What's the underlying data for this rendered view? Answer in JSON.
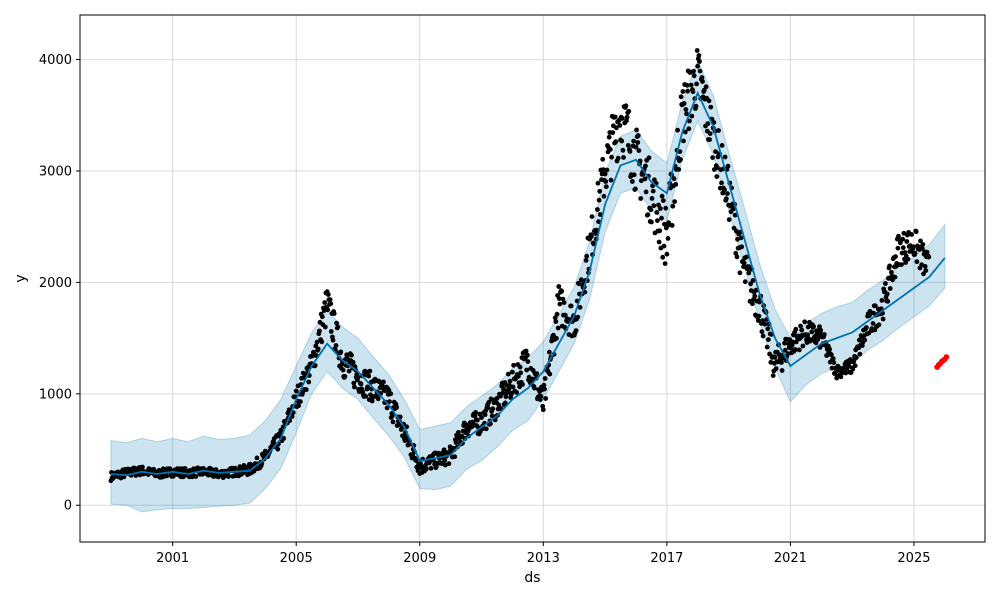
{
  "colors": {
    "observed": "#000000",
    "forecast_line": "#0072B2",
    "uncertainty_band": "#0072B2",
    "recent_points": "#ff0000",
    "grid": "#d9d9d9"
  },
  "chart_data": {
    "type": "line",
    "xlabel": "ds",
    "ylabel": "y",
    "xlim": [
      1998.0,
      2027.3
    ],
    "ylim": [
      -330,
      4400
    ],
    "grid": true,
    "x_ticks": [
      {
        "label": "2001",
        "value": 2001
      },
      {
        "label": "2005",
        "value": 2005
      },
      {
        "label": "2009",
        "value": 2009
      },
      {
        "label": "2013",
        "value": 2013
      },
      {
        "label": "2017",
        "value": 2017
      },
      {
        "label": "2021",
        "value": 2021
      },
      {
        "label": "2025",
        "value": 2025
      }
    ],
    "y_ticks": [
      {
        "label": "0",
        "value": 0
      },
      {
        "label": "1000",
        "value": 1000
      },
      {
        "label": "2000",
        "value": 2000
      },
      {
        "label": "3000",
        "value": 3000
      },
      {
        "label": "4000",
        "value": 4000
      }
    ],
    "series": [
      {
        "role": "forecast",
        "x": [
          1999.0,
          1999.5,
          2000.0,
          2000.5,
          2001.0,
          2001.5,
          2002.0,
          2002.5,
          2003.0,
          2003.5,
          2004.0,
          2004.5,
          2005.0,
          2005.5,
          2006.0,
          2006.5,
          2007.0,
          2007.5,
          2008.0,
          2008.5,
          2009.0,
          2009.5,
          2010.0,
          2010.5,
          2011.0,
          2011.5,
          2012.0,
          2012.5,
          2013.0,
          2013.5,
          2014.0,
          2014.5,
          2015.0,
          2015.5,
          2016.0,
          2016.5,
          2017.0,
          2017.5,
          2018.0,
          2018.5,
          2019.0,
          2019.5,
          2020.0,
          2020.5,
          2021.0,
          2021.5,
          2022.0,
          2022.5,
          2023.0,
          2023.5,
          2024.0,
          2024.5,
          2025.0,
          2025.5,
          2026.0
        ],
        "y": [
          280,
          270,
          300,
          280,
          300,
          280,
          310,
          290,
          300,
          310,
          420,
          600,
          950,
          1250,
          1450,
          1300,
          1200,
          1050,
          900,
          700,
          400,
          420,
          450,
          600,
          700,
          800,
          950,
          1050,
          1200,
          1450,
          1700,
          2100,
          2700,
          3050,
          3100,
          2900,
          2800,
          3350,
          3700,
          3400,
          2900,
          2400,
          1900,
          1500,
          1250,
          1350,
          1450,
          1500,
          1550,
          1650,
          1750,
          1850,
          1950,
          2050,
          2220
        ],
        "lower": [
          10,
          0,
          -60,
          -40,
          -30,
          -30,
          -20,
          -10,
          0,
          20,
          150,
          330,
          650,
          1000,
          1200,
          1050,
          950,
          780,
          620,
          430,
          150,
          140,
          170,
          320,
          400,
          520,
          670,
          760,
          950,
          1200,
          1450,
          1850,
          2450,
          2800,
          2850,
          2650,
          2550,
          3100,
          3450,
          3150,
          2650,
          2150,
          1650,
          1230,
          930,
          1080,
          1180,
          1240,
          1270,
          1390,
          1480,
          1590,
          1690,
          1790,
          1950
        ],
        "upper": [
          580,
          560,
          600,
          570,
          600,
          570,
          620,
          590,
          600,
          630,
          760,
          950,
          1250,
          1550,
          1750,
          1600,
          1500,
          1330,
          1170,
          950,
          680,
          710,
          740,
          880,
          980,
          1080,
          1230,
          1320,
          1470,
          1710,
          1960,
          2370,
          2980,
          3310,
          3370,
          3180,
          3070,
          3620,
          3990,
          3680,
          3170,
          2680,
          2170,
          1760,
          1500,
          1630,
          1720,
          1780,
          1820,
          1930,
          2020,
          2140,
          2230,
          2340,
          2520
        ]
      },
      {
        "role": "observed",
        "x": [
          1999.0,
          1999.5,
          2000.0,
          2000.5,
          2001.0,
          2001.5,
          2002.0,
          2002.5,
          2003.0,
          2003.5,
          2004.0,
          2004.5,
          2005.0,
          2005.5,
          2006.0,
          2006.5,
          2007.0,
          2007.5,
          2008.0,
          2008.5,
          2009.0,
          2009.5,
          2010.0,
          2010.5,
          2011.0,
          2011.5,
          2012.0,
          2012.5,
          2013.0,
          2013.5,
          2014.0,
          2014.5,
          2015.0,
          2015.5,
          2016.0,
          2016.5,
          2017.0,
          2017.5,
          2018.0,
          2018.5,
          2019.0,
          2019.5,
          2020.0,
          2020.5,
          2021.0,
          2021.5,
          2022.0,
          2022.5,
          2023.0,
          2023.5,
          2024.0,
          2024.5,
          2025.0,
          2025.5
        ],
        "y": [
          260,
          290,
          310,
          280,
          300,
          290,
          300,
          280,
          300,
          320,
          430,
          600,
          950,
          1250,
          1800,
          1300,
          1150,
          1050,
          950,
          650,
          350,
          400,
          450,
          700,
          750,
          900,
          1100,
          1300,
          900,
          1800,
          1650,
          2300,
          3000,
          3500,
          3100,
          2800,
          2400,
          3500,
          3850,
          3300,
          2800,
          2100,
          1800,
          1250,
          1450,
          1550,
          1500,
          1200,
          1250,
          1600,
          1800,
          2300,
          2350,
          2100
        ],
        "spread": [
          40,
          40,
          40,
          40,
          40,
          40,
          40,
          40,
          40,
          50,
          60,
          80,
          100,
          120,
          180,
          150,
          140,
          130,
          130,
          120,
          80,
          70,
          80,
          100,
          110,
          120,
          140,
          160,
          150,
          180,
          170,
          200,
          250,
          320,
          300,
          280,
          300,
          300,
          280,
          250,
          230,
          200,
          180,
          160,
          120,
          110,
          100,
          60,
          70,
          120,
          130,
          150,
          150,
          150
        ]
      },
      {
        "role": "recent",
        "x": [
          2025.75,
          2025.8,
          2025.85,
          2025.9,
          2025.95,
          2026.0,
          2026.05
        ],
        "y": [
          1240,
          1260,
          1270,
          1290,
          1300,
          1310,
          1330
        ]
      }
    ]
  }
}
